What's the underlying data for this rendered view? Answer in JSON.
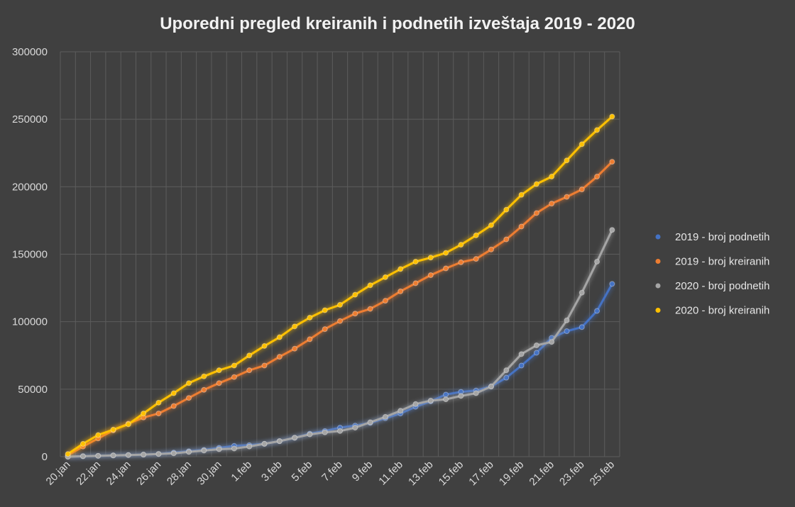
{
  "chart_data": {
    "type": "line",
    "title": "Uporedni pregled kreiranih i podnetih izveštaja 2019 - 2020",
    "ylim": [
      0,
      300000
    ],
    "yticks": [
      0,
      50000,
      100000,
      150000,
      200000,
      250000,
      300000
    ],
    "ytick_labels": [
      "0",
      "50000",
      "100000",
      "150000",
      "200000",
      "250000",
      "300000"
    ],
    "x": [
      "20.jan",
      "21.jan",
      "22.jan",
      "23.jan",
      "24.jan",
      "25.jan",
      "26.jan",
      "27.jan",
      "28.jan",
      "29.jan",
      "30.jan",
      "31.jan",
      "1.feb",
      "2.feb",
      "3.feb",
      "4.feb",
      "5.feb",
      "6.feb",
      "7.feb",
      "8.feb",
      "9.feb",
      "10.feb",
      "11.feb",
      "12.feb",
      "13.feb",
      "14.feb",
      "15.feb",
      "16.feb",
      "17.feb",
      "18.feb",
      "19.feb",
      "20.feb",
      "21.feb",
      "22.feb",
      "23.feb",
      "24.feb",
      "25.feb"
    ],
    "xtick_labels": [
      "20.jan",
      "",
      "22.jan",
      "",
      "24.jan",
      "",
      "26.jan",
      "",
      "28.jan",
      "",
      "30.jan",
      "",
      "1.feb",
      "",
      "3.feb",
      "",
      "5.feb",
      "",
      "7.feb",
      "",
      "9.feb",
      "",
      "11.feb",
      "",
      "13.feb",
      "",
      "15.feb",
      "",
      "17.feb",
      "",
      "19.feb",
      "",
      "21.feb",
      "",
      "23.feb",
      "",
      "25.feb"
    ],
    "grid": true,
    "legend_position": "right",
    "series": [
      {
        "name": "2019 - broj podnetih",
        "color": "#4472C4",
        "values": [
          0,
          300,
          600,
          900,
          1200,
          1500,
          2000,
          3000,
          4000,
          5000,
          6500,
          8000,
          8500,
          9500,
          11500,
          14000,
          17000,
          19000,
          21500,
          23000,
          25000,
          28500,
          32000,
          37000,
          41000,
          46000,
          48000,
          49000,
          52000,
          58500,
          67500,
          77000,
          88000,
          93000,
          96000,
          108000,
          128000
        ]
      },
      {
        "name": "2019 - broj kreiranih",
        "color": "#ED7D31",
        "values": [
          1000,
          7500,
          13500,
          19500,
          24500,
          29000,
          32000,
          37500,
          43500,
          49500,
          54500,
          59000,
          64000,
          67500,
          74000,
          80000,
          87000,
          94500,
          100500,
          106000,
          109500,
          115500,
          122500,
          128500,
          134500,
          139500,
          144000,
          146500,
          153500,
          161000,
          170500,
          180500,
          187500,
          192500,
          198000,
          207500,
          218500
        ]
      },
      {
        "name": "2020 - broj podnetih",
        "color": "#A5A5A5",
        "values": [
          0,
          300,
          600,
          900,
          1200,
          1500,
          2000,
          2500,
          3500,
          4500,
          5500,
          6000,
          7500,
          9500,
          11500,
          14000,
          16500,
          18000,
          19000,
          21500,
          25500,
          29500,
          34000,
          39000,
          41500,
          42500,
          45000,
          47000,
          52000,
          64000,
          76000,
          82500,
          85000,
          101000,
          121500,
          144500,
          168000
        ]
      },
      {
        "name": "2020 - broj kreiranih",
        "color": "#FFC000",
        "values": [
          2000,
          9500,
          16000,
          20000,
          24000,
          32000,
          40000,
          47000,
          54500,
          59500,
          64000,
          67500,
          75000,
          82000,
          88500,
          96500,
          103000,
          108500,
          112500,
          120000,
          127000,
          133000,
          139000,
          144500,
          147500,
          151000,
          157000,
          164000,
          171500,
          183000,
          194000,
          202000,
          207500,
          219500,
          231500,
          242000,
          252000
        ]
      }
    ]
  }
}
